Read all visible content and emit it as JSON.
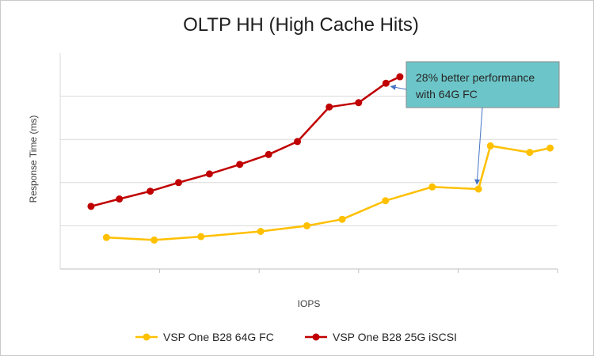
{
  "chart_data": {
    "type": "line",
    "title": "OLTP HH (High Cache Hits)",
    "xlabel": "IOPS",
    "ylabel": "Response Time (ms)",
    "xlim": [
      0,
      100
    ],
    "ylim": [
      0,
      5
    ],
    "x_tick_positions": [
      20,
      40,
      60,
      80
    ],
    "y_gridlines": [
      1,
      2,
      3,
      4
    ],
    "show_tick_labels": false,
    "legend_position": "bottom",
    "series": [
      {
        "name": "VSP One B28 64G FC",
        "color": "#FFC000",
        "x": [
          9.3,
          18.9,
          28.3,
          40.3,
          49.6,
          56.7,
          65.4,
          74.8,
          84.1,
          86.5,
          94.4,
          98.5
        ],
        "y": [
          0.73,
          0.67,
          0.75,
          0.87,
          1.0,
          1.15,
          1.58,
          1.9,
          1.85,
          2.85,
          2.7,
          2.8
        ]
      },
      {
        "name": "VSP One B28 25G iSCSI",
        "color": "#C00000",
        "x": [
          6.2,
          11.9,
          18.1,
          23.8,
          30.0,
          36.1,
          41.9,
          47.7,
          54.1,
          60.0,
          65.5,
          68.3
        ],
        "y": [
          1.45,
          1.62,
          1.8,
          2.0,
          2.2,
          2.42,
          2.65,
          2.95,
          3.75,
          3.85,
          4.3,
          4.45
        ]
      }
    ],
    "annotation": {
      "text_lines": [
        "28%  better performance",
        "with 64G FC"
      ],
      "box_color": "#6CC6C9",
      "arrow_color": "#4472C4",
      "targets": [
        {
          "series": 1,
          "point": 10
        },
        {
          "series": 0,
          "point": 8
        }
      ]
    }
  }
}
